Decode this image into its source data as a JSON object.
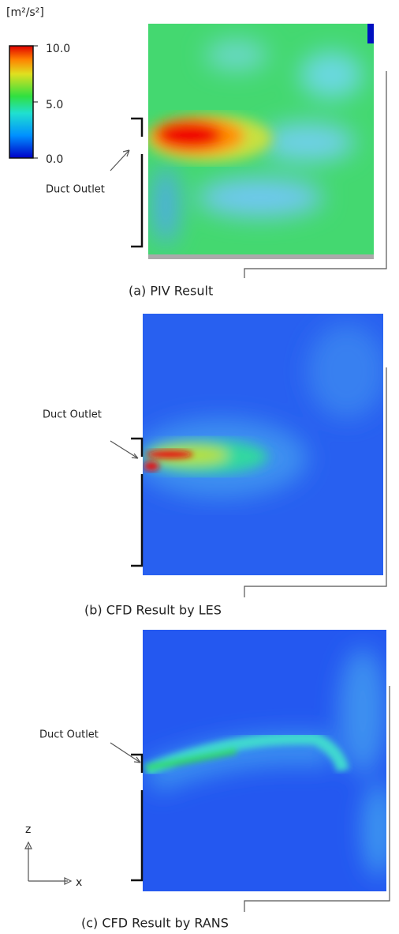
{
  "colorbar": {
    "unit": "[m²/s²]",
    "range": [
      0,
      10
    ],
    "ticks": [
      {
        "value": 10,
        "label": "10.0"
      },
      {
        "value": 5,
        "label": "5.0"
      },
      {
        "value": 0,
        "label": "0.0"
      }
    ]
  },
  "panels": [
    {
      "caption": "(a) PIV Result",
      "annotation": "Duct Outlet"
    },
    {
      "caption": "(b) CFD Result by LES",
      "annotation": "Duct Outlet"
    },
    {
      "caption": "(c) CFD Result by RANS",
      "annotation": "Duct Outlet"
    }
  ],
  "axes": {
    "vertical": "z",
    "horizontal": "x"
  }
}
